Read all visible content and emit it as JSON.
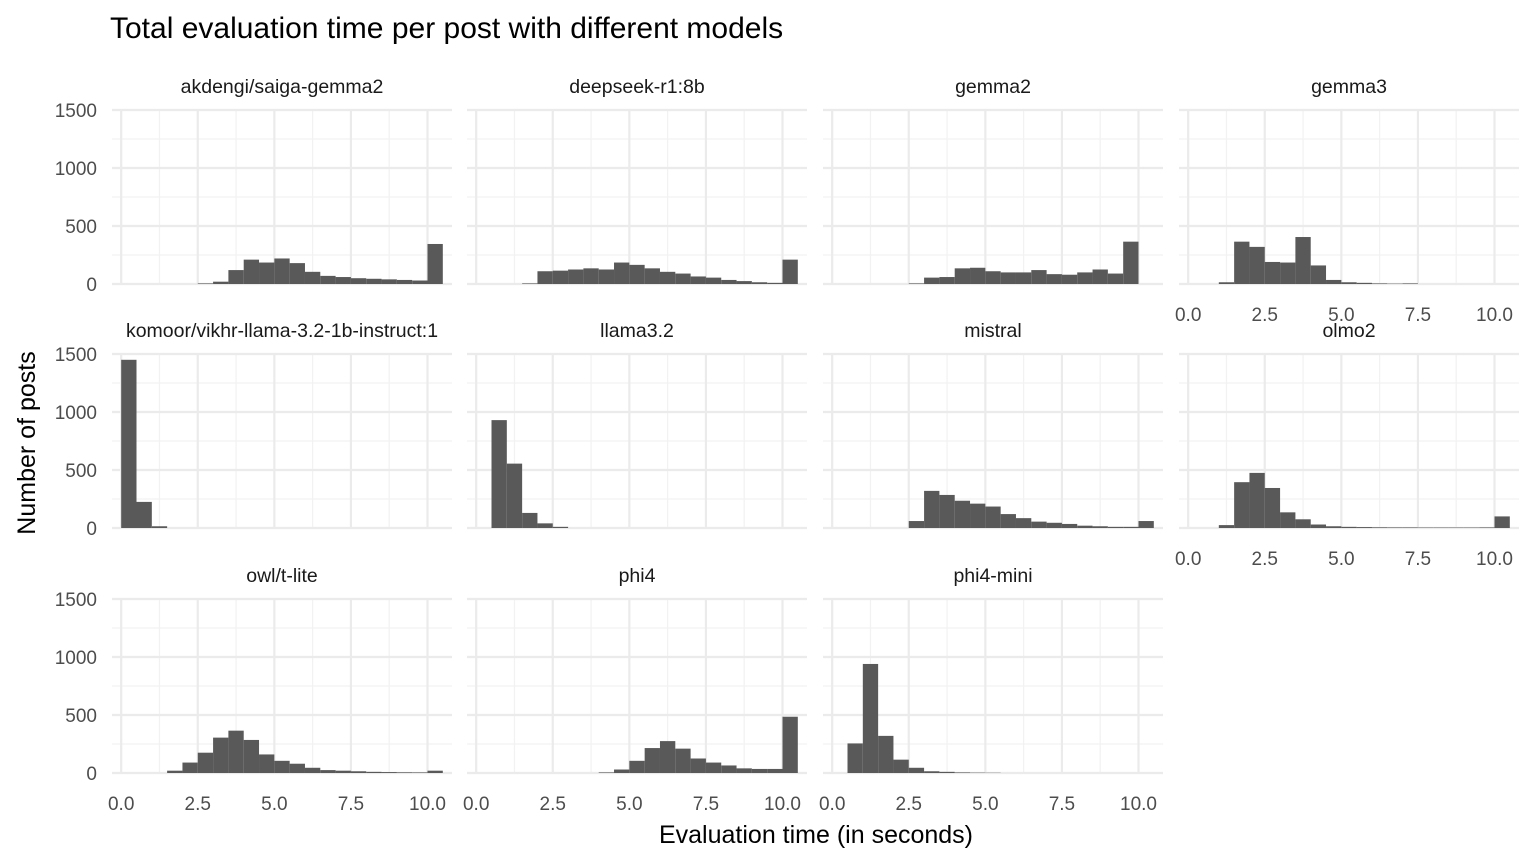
{
  "chart_data": {
    "type": "bar",
    "title": "Total evaluation time per post with different models",
    "xlabel": "Evaluation time (in seconds)",
    "ylabel": "Number of posts",
    "xlim": [
      -0.3,
      10.8
    ],
    "ylim": [
      0,
      1500
    ],
    "x_ticks": [
      0.0,
      2.5,
      5.0,
      7.5,
      10.0
    ],
    "x_tick_labels": [
      "0.0",
      "2.5",
      "5.0",
      "7.5",
      "10.0"
    ],
    "y_ticks": [
      0,
      500,
      1000,
      1500
    ],
    "y_tick_labels": [
      "0",
      "500",
      "1000",
      "1500"
    ],
    "bin_width": 0.5,
    "grid": true,
    "bar_color": "#595959",
    "facets": [
      {
        "name": "akdengi/saiga-gemma2",
        "bins": [
          {
            "x": 2.75,
            "y": 5
          },
          {
            "x": 3.25,
            "y": 20
          },
          {
            "x": 3.75,
            "y": 120
          },
          {
            "x": 4.25,
            "y": 210
          },
          {
            "x": 4.75,
            "y": 185
          },
          {
            "x": 5.25,
            "y": 220
          },
          {
            "x": 5.75,
            "y": 180
          },
          {
            "x": 6.25,
            "y": 105
          },
          {
            "x": 6.75,
            "y": 70
          },
          {
            "x": 7.25,
            "y": 60
          },
          {
            "x": 7.75,
            "y": 50
          },
          {
            "x": 8.25,
            "y": 45
          },
          {
            "x": 8.75,
            "y": 40
          },
          {
            "x": 9.25,
            "y": 35
          },
          {
            "x": 9.75,
            "y": 30
          },
          {
            "x": 10.25,
            "y": 345
          }
        ]
      },
      {
        "name": "deepseek-r1:8b",
        "bins": [
          {
            "x": 1.75,
            "y": 5
          },
          {
            "x": 2.25,
            "y": 110
          },
          {
            "x": 2.75,
            "y": 115
          },
          {
            "x": 3.25,
            "y": 125
          },
          {
            "x": 3.75,
            "y": 135
          },
          {
            "x": 4.25,
            "y": 125
          },
          {
            "x": 4.75,
            "y": 185
          },
          {
            "x": 5.25,
            "y": 165
          },
          {
            "x": 5.75,
            "y": 135
          },
          {
            "x": 6.25,
            "y": 105
          },
          {
            "x": 6.75,
            "y": 90
          },
          {
            "x": 7.25,
            "y": 65
          },
          {
            "x": 7.75,
            "y": 55
          },
          {
            "x": 8.25,
            "y": 35
          },
          {
            "x": 8.75,
            "y": 25
          },
          {
            "x": 9.25,
            "y": 15
          },
          {
            "x": 9.75,
            "y": 10
          },
          {
            "x": 10.25,
            "y": 210
          }
        ]
      },
      {
        "name": "gemma2",
        "bins": [
          {
            "x": 2.75,
            "y": 5
          },
          {
            "x": 3.25,
            "y": 55
          },
          {
            "x": 3.75,
            "y": 60
          },
          {
            "x": 4.25,
            "y": 135
          },
          {
            "x": 4.75,
            "y": 140
          },
          {
            "x": 5.25,
            "y": 110
          },
          {
            "x": 5.75,
            "y": 100
          },
          {
            "x": 6.25,
            "y": 100
          },
          {
            "x": 6.75,
            "y": 120
          },
          {
            "x": 7.25,
            "y": 85
          },
          {
            "x": 7.75,
            "y": 80
          },
          {
            "x": 8.25,
            "y": 100
          },
          {
            "x": 8.75,
            "y": 125
          },
          {
            "x": 9.25,
            "y": 90
          },
          {
            "x": 9.75,
            "y": 365
          }
        ]
      },
      {
        "name": "gemma3",
        "bins": [
          {
            "x": 1.25,
            "y": 15
          },
          {
            "x": 1.75,
            "y": 365
          },
          {
            "x": 2.25,
            "y": 320
          },
          {
            "x": 2.75,
            "y": 190
          },
          {
            "x": 3.25,
            "y": 185
          },
          {
            "x": 3.75,
            "y": 405
          },
          {
            "x": 4.25,
            "y": 160
          },
          {
            "x": 4.75,
            "y": 35
          },
          {
            "x": 5.25,
            "y": 15
          },
          {
            "x": 5.75,
            "y": 10
          },
          {
            "x": 6.25,
            "y": 5
          },
          {
            "x": 6.75,
            "y": 3
          },
          {
            "x": 7.25,
            "y": 5
          }
        ]
      },
      {
        "name": "komoor/vikhr-llama-3.2-1b-instruct:1",
        "bins": [
          {
            "x": 0.25,
            "y": 1450
          },
          {
            "x": 0.75,
            "y": 225
          },
          {
            "x": 1.25,
            "y": 15
          }
        ]
      },
      {
        "name": "llama3.2",
        "bins": [
          {
            "x": 0.75,
            "y": 930
          },
          {
            "x": 1.25,
            "y": 555
          },
          {
            "x": 1.75,
            "y": 130
          },
          {
            "x": 2.25,
            "y": 40
          },
          {
            "x": 2.75,
            "y": 10
          }
        ]
      },
      {
        "name": "mistral",
        "bins": [
          {
            "x": 2.75,
            "y": 60
          },
          {
            "x": 3.25,
            "y": 320
          },
          {
            "x": 3.75,
            "y": 285
          },
          {
            "x": 4.25,
            "y": 235
          },
          {
            "x": 4.75,
            "y": 210
          },
          {
            "x": 5.25,
            "y": 185
          },
          {
            "x": 5.75,
            "y": 120
          },
          {
            "x": 6.25,
            "y": 85
          },
          {
            "x": 6.75,
            "y": 55
          },
          {
            "x": 7.25,
            "y": 45
          },
          {
            "x": 7.75,
            "y": 35
          },
          {
            "x": 8.25,
            "y": 20
          },
          {
            "x": 8.75,
            "y": 15
          },
          {
            "x": 9.25,
            "y": 10
          },
          {
            "x": 9.75,
            "y": 10
          },
          {
            "x": 10.25,
            "y": 60
          }
        ]
      },
      {
        "name": "olmo2",
        "bins": [
          {
            "x": 1.25,
            "y": 25
          },
          {
            "x": 1.75,
            "y": 395
          },
          {
            "x": 2.25,
            "y": 475
          },
          {
            "x": 2.75,
            "y": 345
          },
          {
            "x": 3.25,
            "y": 135
          },
          {
            "x": 3.75,
            "y": 75
          },
          {
            "x": 4.25,
            "y": 30
          },
          {
            "x": 4.75,
            "y": 15
          },
          {
            "x": 5.25,
            "y": 10
          },
          {
            "x": 5.75,
            "y": 8
          },
          {
            "x": 6.25,
            "y": 6
          },
          {
            "x": 6.75,
            "y": 5
          },
          {
            "x": 7.25,
            "y": 5
          },
          {
            "x": 7.75,
            "y": 4
          },
          {
            "x": 8.25,
            "y": 4
          },
          {
            "x": 8.75,
            "y": 4
          },
          {
            "x": 9.25,
            "y": 4
          },
          {
            "x": 9.75,
            "y": 5
          },
          {
            "x": 10.25,
            "y": 100
          }
        ]
      },
      {
        "name": "owl/t-lite",
        "bins": [
          {
            "x": 1.75,
            "y": 20
          },
          {
            "x": 2.25,
            "y": 90
          },
          {
            "x": 2.75,
            "y": 175
          },
          {
            "x": 3.25,
            "y": 305
          },
          {
            "x": 3.75,
            "y": 365
          },
          {
            "x": 4.25,
            "y": 285
          },
          {
            "x": 4.75,
            "y": 160
          },
          {
            "x": 5.25,
            "y": 105
          },
          {
            "x": 5.75,
            "y": 80
          },
          {
            "x": 6.25,
            "y": 45
          },
          {
            "x": 6.75,
            "y": 25
          },
          {
            "x": 7.25,
            "y": 20
          },
          {
            "x": 7.75,
            "y": 15
          },
          {
            "x": 8.25,
            "y": 10
          },
          {
            "x": 8.75,
            "y": 8
          },
          {
            "x": 9.25,
            "y": 6
          },
          {
            "x": 9.75,
            "y": 5
          },
          {
            "x": 10.25,
            "y": 20
          }
        ]
      },
      {
        "name": "phi4",
        "bins": [
          {
            "x": 4.25,
            "y": 5
          },
          {
            "x": 4.75,
            "y": 30
          },
          {
            "x": 5.25,
            "y": 105
          },
          {
            "x": 5.75,
            "y": 215
          },
          {
            "x": 6.25,
            "y": 275
          },
          {
            "x": 6.75,
            "y": 210
          },
          {
            "x": 7.25,
            "y": 125
          },
          {
            "x": 7.75,
            "y": 90
          },
          {
            "x": 8.25,
            "y": 65
          },
          {
            "x": 8.75,
            "y": 40
          },
          {
            "x": 9.25,
            "y": 35
          },
          {
            "x": 9.75,
            "y": 35
          },
          {
            "x": 10.25,
            "y": 485
          }
        ]
      },
      {
        "name": "phi4-mini",
        "bins": [
          {
            "x": 0.75,
            "y": 255
          },
          {
            "x": 1.25,
            "y": 940
          },
          {
            "x": 1.75,
            "y": 320
          },
          {
            "x": 2.25,
            "y": 115
          },
          {
            "x": 2.75,
            "y": 45
          },
          {
            "x": 3.25,
            "y": 15
          },
          {
            "x": 3.75,
            "y": 10
          },
          {
            "x": 4.25,
            "y": 5
          },
          {
            "x": 4.75,
            "y": 3
          },
          {
            "x": 5.25,
            "y": 2
          }
        ]
      }
    ]
  }
}
